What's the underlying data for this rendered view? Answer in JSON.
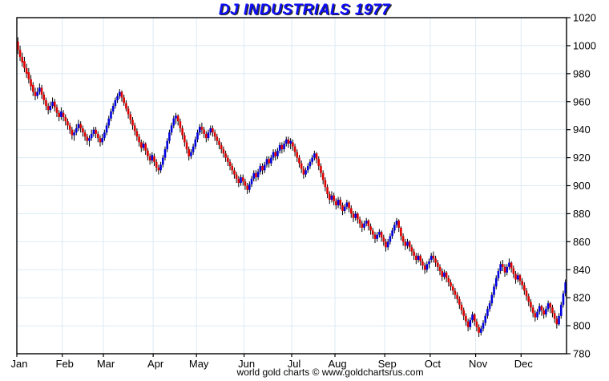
{
  "window": {
    "title": "DJ INDUSTRIALS 1977"
  },
  "footer": {
    "credit": "world gold charts © www.goldchartsrus.com"
  },
  "colors": {
    "up": "#0000dd",
    "down": "#dd0000",
    "wick": "#000000",
    "grid": "#dcebf6",
    "axis": "#000000",
    "title": "#0d0dff",
    "background": "#ffffff"
  },
  "chart_data": {
    "type": "ohlc",
    "title": "DJ INDUSTRIALS 1977",
    "ylabel": "",
    "xlabel": "",
    "ylim": [
      780,
      1020
    ],
    "y_ticks": [
      1020,
      1000,
      980,
      960,
      940,
      920,
      900,
      880,
      860,
      840,
      820,
      800,
      780
    ],
    "grid": true,
    "legend": false,
    "x_months": [
      "Jan",
      "Feb",
      "Mar",
      "Apr",
      "May",
      "Jun",
      "Jul",
      "Aug",
      "Sep",
      "Oct",
      "Nov",
      "Dec"
    ],
    "month_start_indices": [
      0,
      21,
      40,
      63,
      83,
      105,
      127,
      147,
      170,
      191,
      212,
      233
    ],
    "bars_format": [
      "open",
      "high",
      "low",
      "close"
    ],
    "bars": [
      [
        1003,
        1006,
        994,
        997
      ],
      [
        997,
        1000,
        989,
        992
      ],
      [
        992,
        995,
        985,
        988
      ],
      [
        989,
        992,
        981,
        984
      ],
      [
        984,
        987,
        977,
        980
      ],
      [
        981,
        984,
        973,
        976
      ],
      [
        976,
        979,
        968,
        971
      ],
      [
        972,
        974,
        964,
        967
      ],
      [
        967,
        970,
        961,
        964
      ],
      [
        964,
        970,
        962,
        967
      ],
      [
        967,
        973,
        965,
        970
      ],
      [
        970,
        972,
        962,
        965
      ],
      [
        965,
        967,
        958,
        961
      ],
      [
        961,
        963,
        954,
        957
      ],
      [
        957,
        959,
        951,
        954
      ],
      [
        954,
        960,
        952,
        957
      ],
      [
        957,
        963,
        955,
        960
      ],
      [
        960,
        962,
        953,
        956
      ],
      [
        956,
        958,
        949,
        952
      ],
      [
        952,
        954,
        946,
        949
      ],
      [
        949,
        956,
        947,
        953
      ],
      [
        952,
        954,
        946,
        949
      ],
      [
        949,
        951,
        943,
        946
      ],
      [
        946,
        948,
        940,
        943
      ],
      [
        943,
        945,
        937,
        940
      ],
      [
        940,
        942,
        933,
        936
      ],
      [
        936,
        940,
        932,
        938
      ],
      [
        938,
        944,
        936,
        941
      ],
      [
        941,
        947,
        939,
        944
      ],
      [
        944,
        946,
        938,
        941
      ],
      [
        941,
        943,
        935,
        938
      ],
      [
        938,
        940,
        932,
        935
      ],
      [
        935,
        937,
        929,
        932
      ],
      [
        932,
        936,
        928,
        934
      ],
      [
        934,
        940,
        932,
        937
      ],
      [
        937,
        942,
        935,
        940
      ],
      [
        940,
        942,
        934,
        937
      ],
      [
        937,
        939,
        931,
        934
      ],
      [
        934,
        936,
        928,
        931
      ],
      [
        931,
        937,
        929,
        934
      ],
      [
        934,
        940,
        932,
        938
      ],
      [
        938,
        945,
        936,
        943
      ],
      [
        943,
        950,
        941,
        948
      ],
      [
        948,
        955,
        946,
        953
      ],
      [
        953,
        959,
        951,
        957
      ],
      [
        957,
        963,
        955,
        961
      ],
      [
        961,
        966,
        959,
        964
      ],
      [
        964,
        969,
        962,
        967
      ],
      [
        967,
        968,
        960,
        963
      ],
      [
        963,
        965,
        957,
        959
      ],
      [
        959,
        961,
        953,
        955
      ],
      [
        955,
        957,
        948,
        951
      ],
      [
        951,
        953,
        944,
        947
      ],
      [
        947,
        949,
        940,
        943
      ],
      [
        943,
        945,
        936,
        939
      ],
      [
        939,
        941,
        932,
        935
      ],
      [
        935,
        937,
        928,
        931
      ],
      [
        931,
        933,
        924,
        927
      ],
      [
        927,
        932,
        925,
        930
      ],
      [
        930,
        931,
        922,
        925
      ],
      [
        925,
        927,
        918,
        921
      ],
      [
        921,
        923,
        915,
        918
      ],
      [
        918,
        924,
        916,
        922
      ],
      [
        921,
        923,
        914,
        917
      ],
      [
        917,
        919,
        910,
        913
      ],
      [
        913,
        915,
        908,
        911
      ],
      [
        911,
        917,
        909,
        915
      ],
      [
        915,
        922,
        913,
        920
      ],
      [
        920,
        928,
        918,
        926
      ],
      [
        926,
        934,
        924,
        932
      ],
      [
        932,
        940,
        930,
        938
      ],
      [
        938,
        945,
        936,
        943
      ],
      [
        943,
        950,
        941,
        948
      ],
      [
        948,
        952,
        944,
        950
      ],
      [
        950,
        951,
        943,
        946
      ],
      [
        946,
        948,
        938,
        941
      ],
      [
        941,
        943,
        933,
        936
      ],
      [
        936,
        938,
        928,
        931
      ],
      [
        931,
        933,
        923,
        926
      ],
      [
        926,
        928,
        918,
        921
      ],
      [
        921,
        926,
        919,
        924
      ],
      [
        924,
        930,
        922,
        928
      ],
      [
        928,
        935,
        926,
        933
      ],
      [
        933,
        940,
        931,
        938
      ],
      [
        938,
        944,
        936,
        942
      ],
      [
        942,
        945,
        937,
        940
      ],
      [
        940,
        942,
        934,
        937
      ],
      [
        937,
        939,
        931,
        934
      ],
      [
        934,
        940,
        932,
        938
      ],
      [
        938,
        943,
        936,
        941
      ],
      [
        941,
        943,
        935,
        938
      ],
      [
        938,
        940,
        932,
        935
      ],
      [
        935,
        937,
        929,
        932
      ],
      [
        932,
        934,
        926,
        929
      ],
      [
        929,
        931,
        923,
        926
      ],
      [
        926,
        928,
        920,
        923
      ],
      [
        923,
        925,
        917,
        920
      ],
      [
        920,
        922,
        914,
        917
      ],
      [
        917,
        919,
        911,
        914
      ],
      [
        914,
        916,
        908,
        911
      ],
      [
        911,
        913,
        905,
        908
      ],
      [
        908,
        910,
        902,
        905
      ],
      [
        905,
        907,
        899,
        902
      ],
      [
        902,
        908,
        900,
        906
      ],
      [
        906,
        908,
        900,
        903
      ],
      [
        903,
        905,
        897,
        900
      ],
      [
        900,
        902,
        894,
        897
      ],
      [
        897,
        903,
        895,
        901
      ],
      [
        901,
        907,
        899,
        905
      ],
      [
        905,
        911,
        903,
        909
      ],
      [
        909,
        911,
        903,
        906
      ],
      [
        906,
        912,
        904,
        910
      ],
      [
        910,
        916,
        908,
        914
      ],
      [
        914,
        916,
        908,
        911
      ],
      [
        911,
        917,
        909,
        915
      ],
      [
        915,
        921,
        913,
        919
      ],
      [
        919,
        921,
        913,
        916
      ],
      [
        916,
        922,
        914,
        920
      ],
      [
        920,
        926,
        918,
        924
      ],
      [
        924,
        926,
        918,
        921
      ],
      [
        921,
        927,
        919,
        925
      ],
      [
        925,
        931,
        923,
        929
      ],
      [
        929,
        931,
        923,
        926
      ],
      [
        926,
        932,
        924,
        930
      ],
      [
        930,
        935,
        928,
        933
      ],
      [
        933,
        935,
        927,
        930
      ],
      [
        930,
        934,
        926,
        932
      ],
      [
        931,
        933,
        925,
        928
      ],
      [
        928,
        930,
        921,
        924
      ],
      [
        924,
        926,
        917,
        920
      ],
      [
        920,
        922,
        913,
        916
      ],
      [
        916,
        918,
        909,
        912
      ],
      [
        912,
        914,
        905,
        908
      ],
      [
        908,
        913,
        906,
        911
      ],
      [
        911,
        916,
        909,
        914
      ],
      [
        914,
        919,
        912,
        917
      ],
      [
        917,
        922,
        915,
        920
      ],
      [
        920,
        925,
        918,
        923
      ],
      [
        923,
        924,
        916,
        919
      ],
      [
        919,
        921,
        911,
        914
      ],
      [
        914,
        916,
        906,
        909
      ],
      [
        909,
        911,
        901,
        904
      ],
      [
        904,
        906,
        896,
        899
      ],
      [
        899,
        901,
        891,
        894
      ],
      [
        894,
        896,
        887,
        890
      ],
      [
        890,
        896,
        888,
        893
      ],
      [
        893,
        895,
        886,
        889
      ],
      [
        889,
        891,
        883,
        886
      ],
      [
        886,
        892,
        884,
        890
      ],
      [
        890,
        892,
        883,
        886
      ],
      [
        886,
        888,
        879,
        882
      ],
      [
        882,
        887,
        880,
        885
      ],
      [
        885,
        890,
        883,
        888
      ],
      [
        888,
        889,
        881,
        884
      ],
      [
        884,
        886,
        877,
        880
      ],
      [
        880,
        882,
        874,
        877
      ],
      [
        877,
        882,
        875,
        880
      ],
      [
        880,
        881,
        873,
        876
      ],
      [
        876,
        878,
        870,
        873
      ],
      [
        873,
        875,
        867,
        870
      ],
      [
        870,
        875,
        868,
        873
      ],
      [
        873,
        877,
        871,
        875
      ],
      [
        875,
        876,
        868,
        871
      ],
      [
        871,
        873,
        865,
        868
      ],
      [
        868,
        870,
        862,
        865
      ],
      [
        865,
        867,
        859,
        862
      ],
      [
        862,
        867,
        860,
        865
      ],
      [
        865,
        869,
        863,
        867
      ],
      [
        867,
        868,
        860,
        863
      ],
      [
        863,
        865,
        857,
        860
      ],
      [
        860,
        862,
        853,
        856
      ],
      [
        856,
        862,
        854,
        860
      ],
      [
        860,
        866,
        858,
        864
      ],
      [
        864,
        870,
        862,
        868
      ],
      [
        868,
        874,
        866,
        872
      ],
      [
        872,
        877,
        870,
        875
      ],
      [
        875,
        876,
        867,
        870
      ],
      [
        870,
        871,
        861,
        864
      ],
      [
        864,
        866,
        857,
        860
      ],
      [
        860,
        862,
        854,
        857
      ],
      [
        857,
        862,
        855,
        860
      ],
      [
        860,
        861,
        853,
        856
      ],
      [
        856,
        858,
        850,
        853
      ],
      [
        853,
        855,
        847,
        850
      ],
      [
        850,
        852,
        844,
        847
      ],
      [
        847,
        852,
        845,
        850
      ],
      [
        850,
        851,
        843,
        846
      ],
      [
        846,
        848,
        840,
        843
      ],
      [
        843,
        845,
        837,
        840
      ],
      [
        840,
        846,
        838,
        844
      ],
      [
        844,
        848,
        841,
        846
      ],
      [
        847,
        852,
        845,
        850
      ],
      [
        850,
        853,
        845,
        848
      ],
      [
        848,
        850,
        842,
        845
      ],
      [
        845,
        847,
        839,
        842
      ],
      [
        842,
        844,
        836,
        839
      ],
      [
        839,
        841,
        832,
        835
      ],
      [
        835,
        840,
        833,
        838
      ],
      [
        838,
        839,
        831,
        834
      ],
      [
        834,
        836,
        828,
        831
      ],
      [
        831,
        833,
        825,
        828
      ],
      [
        828,
        830,
        822,
        825
      ],
      [
        825,
        827,
        819,
        822
      ],
      [
        822,
        824,
        816,
        819
      ],
      [
        819,
        821,
        812,
        815
      ],
      [
        815,
        817,
        808,
        811
      ],
      [
        811,
        813,
        804,
        807
      ],
      [
        807,
        809,
        800,
        803
      ],
      [
        803,
        805,
        796,
        799
      ],
      [
        799,
        806,
        797,
        804
      ],
      [
        804,
        810,
        802,
        808
      ],
      [
        808,
        809,
        800,
        803
      ],
      [
        803,
        805,
        796,
        799
      ],
      [
        799,
        801,
        792,
        795
      ],
      [
        795,
        800,
        793,
        798
      ],
      [
        798,
        804,
        796,
        802
      ],
      [
        802,
        809,
        800,
        807
      ],
      [
        807,
        814,
        805,
        812
      ],
      [
        812,
        818,
        810,
        816
      ],
      [
        816,
        824,
        814,
        822
      ],
      [
        822,
        830,
        820,
        828
      ],
      [
        828,
        836,
        826,
        834
      ],
      [
        834,
        841,
        832,
        839
      ],
      [
        839,
        846,
        837,
        844
      ],
      [
        844,
        847,
        839,
        842
      ],
      [
        842,
        844,
        835,
        838
      ],
      [
        838,
        844,
        836,
        842
      ],
      [
        842,
        848,
        840,
        845
      ],
      [
        845,
        846,
        838,
        841
      ],
      [
        841,
        843,
        834,
        837
      ],
      [
        837,
        839,
        830,
        833
      ],
      [
        833,
        838,
        831,
        836
      ],
      [
        836,
        837,
        829,
        832
      ],
      [
        832,
        834,
        826,
        829
      ],
      [
        829,
        831,
        822,
        825
      ],
      [
        825,
        827,
        818,
        821
      ],
      [
        821,
        823,
        814,
        817
      ],
      [
        817,
        819,
        810,
        813
      ],
      [
        813,
        815,
        806,
        809
      ],
      [
        809,
        811,
        803,
        806
      ],
      [
        806,
        812,
        804,
        810
      ],
      [
        810,
        816,
        808,
        814
      ],
      [
        814,
        815,
        807,
        811
      ],
      [
        811,
        813,
        805,
        808
      ],
      [
        808,
        814,
        806,
        812
      ],
      [
        812,
        818,
        810,
        816
      ],
      [
        816,
        817,
        809,
        813
      ],
      [
        813,
        815,
        806,
        809
      ],
      [
        809,
        811,
        802,
        805
      ],
      [
        805,
        807,
        798,
        801
      ],
      [
        801,
        809,
        800,
        807
      ],
      [
        807,
        817,
        805,
        815
      ],
      [
        815,
        825,
        813,
        823
      ],
      [
        823,
        833,
        821,
        831
      ]
    ]
  }
}
